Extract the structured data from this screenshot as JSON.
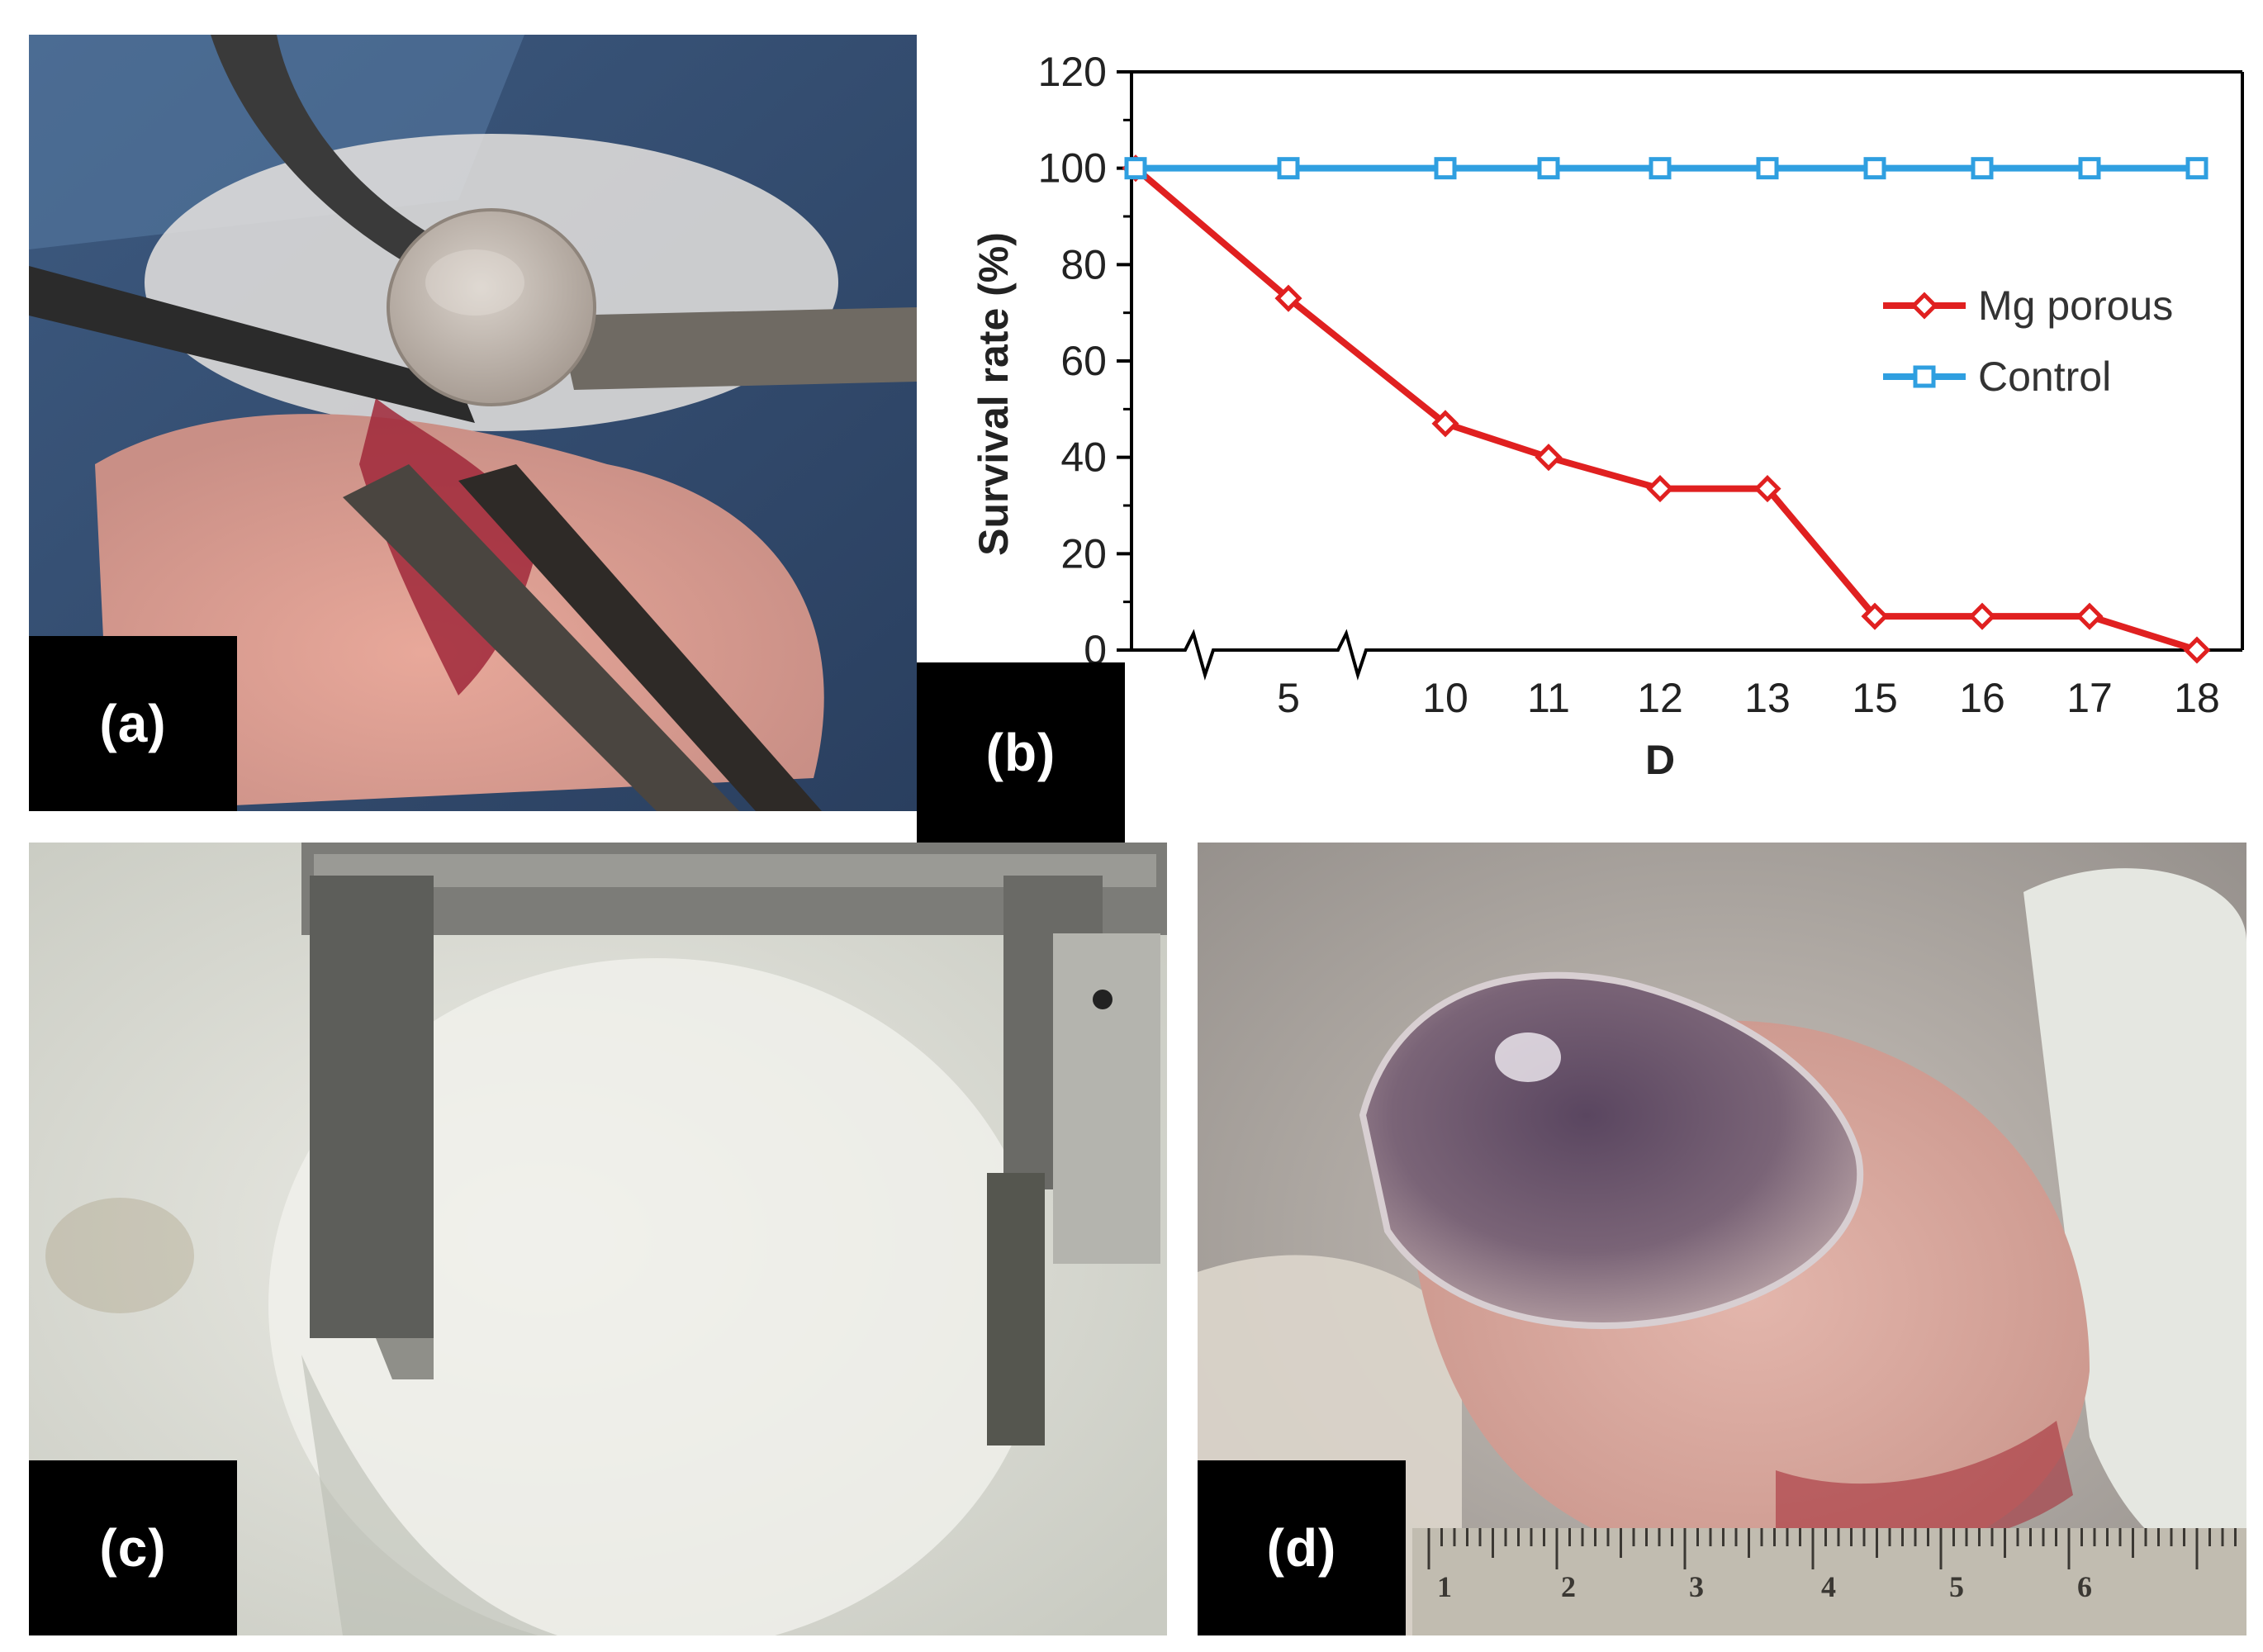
{
  "panels": {
    "a": {
      "label": "(a)"
    },
    "b": {
      "label": "(b)"
    },
    "c": {
      "label": "(c)"
    },
    "d": {
      "label": "(d)"
    }
  },
  "ruler_d": {
    "numbers": [
      "1",
      "2",
      "3",
      "4",
      "5",
      "6"
    ]
  },
  "chart_data": {
    "type": "line",
    "title": "",
    "xlabel": "D",
    "ylabel": "Survival rate (%)",
    "categories": [
      "0",
      "5",
      "10",
      "11",
      "12",
      "13",
      "15",
      "16",
      "17",
      "18"
    ],
    "x_tick_labels": [
      "5",
      "10",
      "11",
      "12",
      "13",
      "15",
      "16",
      "17",
      "18"
    ],
    "ylim": [
      0,
      120
    ],
    "y_ticks": [
      "0",
      "20",
      "40",
      "60",
      "80",
      "100",
      "120"
    ],
    "axis_break": true,
    "grid": false,
    "legend_position": "right",
    "series": [
      {
        "name": "Mg porous",
        "color": "#e02020",
        "marker": "diamond-open",
        "values": [
          100,
          73,
          47,
          40,
          33.5,
          33.5,
          7,
          7,
          7,
          0
        ]
      },
      {
        "name": "Control",
        "color": "#2f9fe0",
        "marker": "square-open",
        "values": [
          100,
          100,
          100,
          100,
          100,
          100,
          100,
          100,
          100,
          100
        ]
      }
    ]
  }
}
